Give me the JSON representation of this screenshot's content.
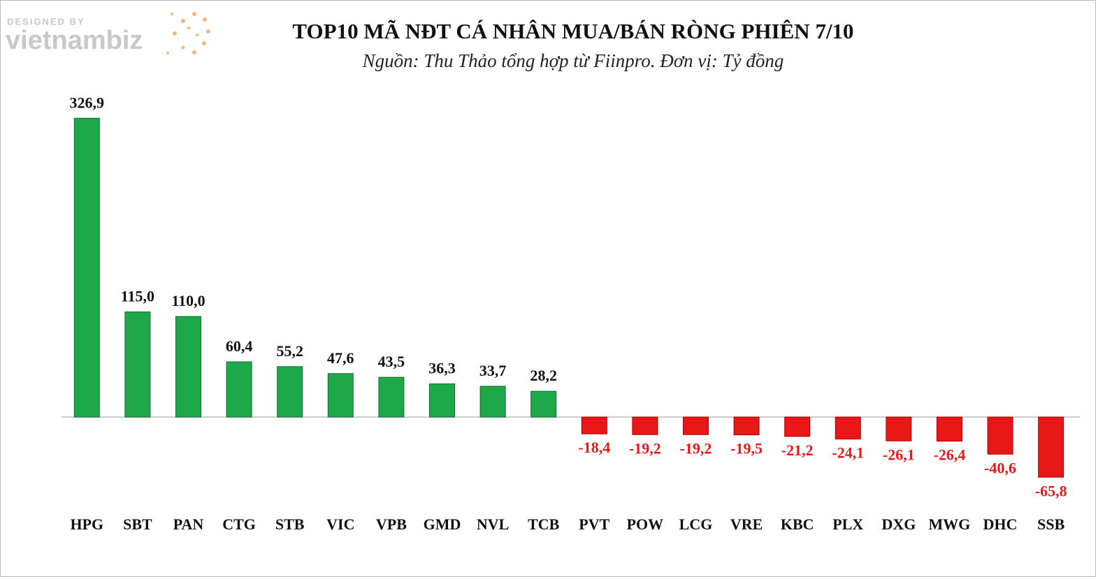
{
  "watermark": [
    "DESIGNED BY",
    "vietnambiz"
  ],
  "chart_data": {
    "type": "bar",
    "title": "TOP10 MÃ NĐT CÁ NHÂN MUA/BÁN RÒNG PHIÊN 7/10",
    "subtitle": "Nguồn: Thu Thảo tổng hợp từ Fiinpro. Đơn vị: Tỷ đồng",
    "categories": [
      "HPG",
      "SBT",
      "PAN",
      "CTG",
      "STB",
      "VIC",
      "VPB",
      "GMD",
      "NVL",
      "TCB",
      "PVT",
      "POW",
      "LCG",
      "VRE",
      "KBC",
      "PLX",
      "DXG",
      "MWG",
      "DHC",
      "SSB"
    ],
    "values": [
      326.9,
      115.0,
      110.0,
      60.4,
      55.2,
      47.6,
      43.5,
      36.3,
      33.7,
      28.2,
      -18.4,
      -19.2,
      -19.2,
      -19.5,
      -21.2,
      -24.1,
      -26.1,
      -26.4,
      -40.6,
      -65.8
    ],
    "value_labels": [
      "326,9",
      "115,0",
      "110,0",
      "60,4",
      "55,2",
      "47,6",
      "43,5",
      "36,3",
      "33,7",
      "28,2",
      "-18,4",
      "-19,2",
      "-19,2",
      "-19,5",
      "-21,2",
      "-24,1",
      "-26,1",
      "-26,4",
      "-40,6",
      "-65,8"
    ],
    "colors": {
      "positive": "#1ea84a",
      "negative": "#e81818"
    },
    "label_colors": {
      "positive": "#111111",
      "negative": "#e81818"
    },
    "ylim": [
      -100,
      350
    ]
  }
}
